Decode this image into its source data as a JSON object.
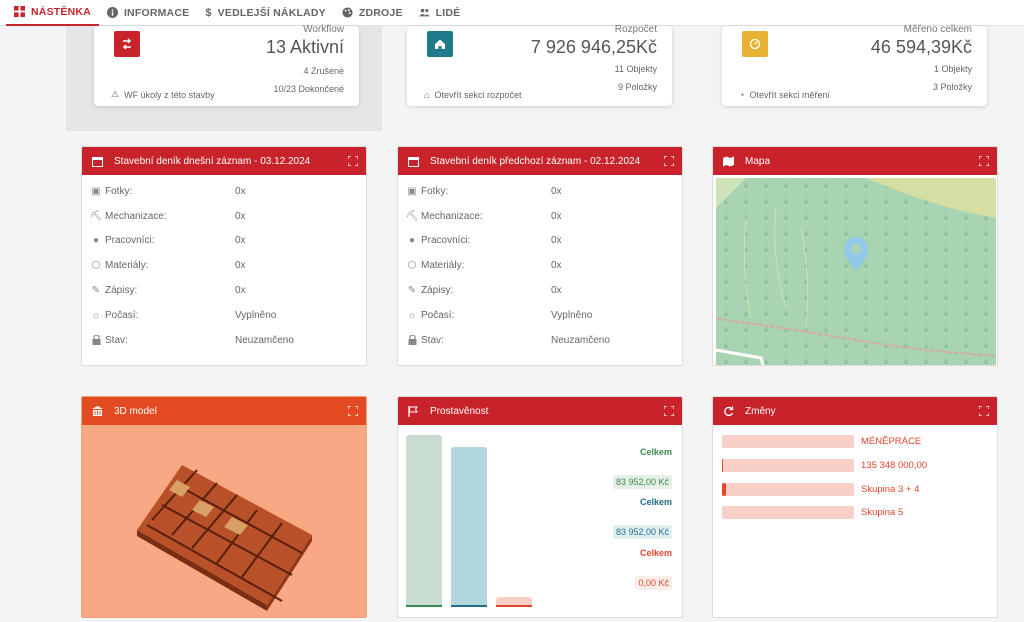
{
  "nav": {
    "tabs": [
      {
        "label": "NÁSTĚNKA",
        "icon": "grid-icon"
      },
      {
        "label": "INFORMACE",
        "icon": "info-icon"
      },
      {
        "label": "VEDLEJŠÍ NÁKLADY",
        "icon": "dollar-icon"
      },
      {
        "label": "ZDROJE",
        "icon": "palette-icon"
      },
      {
        "label": "LIDÉ",
        "icon": "people-icon"
      }
    ]
  },
  "kpis": [
    {
      "label": "Workflow",
      "value": "13 Aktivní",
      "sub1": "4 Zrušené",
      "sub2": "10/23 Dokončené",
      "link": "WF úkoly z této stavby",
      "color": "#c8222a"
    },
    {
      "label": "Rozpočet",
      "value": "7 926 946,25Kč",
      "sub1": "11 Objekty",
      "sub2": "9 Položky",
      "link": "Otevřít sekci rozpočet",
      "color": "#1f7a8c"
    },
    {
      "label": "Měřeno celkem",
      "value": "46 594,39Kč",
      "sub1": "1 Objekty",
      "sub2": "3 Položky",
      "link": "Otevřít sekci měření",
      "color": "#e8b234"
    }
  ],
  "diary_today": {
    "title": "Stavební deník dnešní záznam - 03.12.2024",
    "rows": [
      {
        "label": "Fotky:",
        "value": "0x",
        "icon": "photo-icon"
      },
      {
        "label": "Mechanizace:",
        "value": "0x",
        "icon": "excavator-icon"
      },
      {
        "label": "Pracovníci:",
        "value": "0x",
        "icon": "worker-icon"
      },
      {
        "label": "Materiály:",
        "value": "0x",
        "icon": "box-icon"
      },
      {
        "label": "Zápisy:",
        "value": "0x",
        "icon": "pencil-icon"
      },
      {
        "label": "Počasí:",
        "value": "Vyplněno",
        "icon": "sun-icon"
      },
      {
        "label": "Stav:",
        "value": "Neuzamčeno",
        "icon": "lock-icon"
      }
    ]
  },
  "diary_prev": {
    "title": "Stavební deník předchozí záznam - 02.12.2024",
    "rows": [
      {
        "label": "Fotky:",
        "value": "0x",
        "icon": "photo-icon"
      },
      {
        "label": "Mechanizace:",
        "value": "0x",
        "icon": "excavator-icon"
      },
      {
        "label": "Pracovníci:",
        "value": "0x",
        "icon": "worker-icon"
      },
      {
        "label": "Materiály:",
        "value": "0x",
        "icon": "box-icon"
      },
      {
        "label": "Zápisy:",
        "value": "0x",
        "icon": "pencil-icon"
      },
      {
        "label": "Počasí:",
        "value": "Vyplněno",
        "icon": "sun-icon"
      },
      {
        "label": "Stav:",
        "value": "Neuzamčeno",
        "icon": "lock-icon"
      }
    ]
  },
  "map": {
    "title": "Mapa"
  },
  "model3d": {
    "title": "3D model"
  },
  "progress": {
    "title": "Prostavěnost",
    "items": [
      {
        "label": "Celkem",
        "value": "83 952,00 Kč",
        "color": "#3b8a4e",
        "bar_color": "#c9ddd1",
        "level": 1.0
      },
      {
        "label": "Celkem",
        "value": "83 952,00 Kč",
        "color": "#1f6f87",
        "bar_color": "#b3d7df",
        "level": 0.93
      },
      {
        "label": "Celkem",
        "value": "0,00 Kč",
        "color": "#e0452e",
        "bar_color": "#f7cfc6",
        "level": 0.06
      }
    ]
  },
  "changes": {
    "title": "Změny",
    "items": [
      {
        "text": "MÉNĚPRÁCE",
        "fill": 0
      },
      {
        "text": "135 348 000,00",
        "fill": 0.01
      },
      {
        "text": "Skupina 3 + 4",
        "fill": 0.03
      },
      {
        "text": "Skupina 5",
        "fill": 0
      }
    ]
  }
}
